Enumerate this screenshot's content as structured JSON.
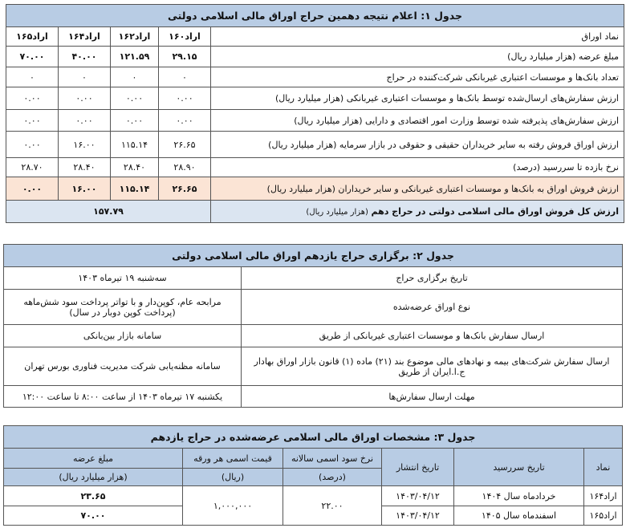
{
  "table1": {
    "title": "جدول ۱: اعلام نتیجه دهمین حراج اوراق مالی اسلامی دولتی",
    "header_label": "نماد اوراق",
    "symbols": [
      "اراد۱۶۰",
      "اراد۱۶۲",
      "اراد۱۶۴",
      "اراد۱۶۵"
    ],
    "rows": [
      {
        "label": "مبلغ عرضه (هزار میلیارد ریال)",
        "values": [
          "۲۹.۱۵",
          "۱۲۱.۵۹",
          "۴۰.۰۰",
          "۷۰.۰۰"
        ]
      },
      {
        "label": "تعداد بانک‌ها و موسسات اعتباری غیربانکی شرکت‌کننده در حراج",
        "values": [
          "۰",
          "۰",
          "۰",
          "۰"
        ]
      },
      {
        "label": "ارزش سفارش‌های ارسال‌شده توسط بانک‌ها و موسسات اعتباری غیربانکی (هزار میلیارد ریال)",
        "values": [
          "۰.۰۰",
          "۰.۰۰",
          "۰.۰۰",
          "۰.۰۰"
        ]
      },
      {
        "label": "ارزش سفارش‌های پذیرفته شده توسط وزارت امور اقتصادی و دارایی (هزار میلیارد ریال)",
        "values": [
          "۰.۰۰",
          "۰.۰۰",
          "۰.۰۰",
          "۰.۰۰"
        ]
      },
      {
        "label": "ارزش اوراق فروش رفته به سایر خریداران حقیقی و حقوقی در بازار سرمایه (هزار میلیارد ریال)",
        "values": [
          "۲۶.۶۵",
          "۱۱۵.۱۴",
          "۱۶.۰۰",
          "۰.۰۰"
        ]
      },
      {
        "label": "نرخ بازده تا سررسید (درصد)",
        "values": [
          "۲۸.۹۰",
          "۲۸.۴۰",
          "۲۸.۴۰",
          "۲۸.۷۰"
        ]
      }
    ],
    "highlight_row": {
      "label": "ارزش فروش اوراق به بانک‌ها و موسسات اعتباری غیربانکی و سایر خریداران (هزار میلیارد ریال)",
      "values": [
        "۲۶.۶۵",
        "۱۱۵.۱۴",
        "۱۶.۰۰",
        "۰.۰۰"
      ]
    },
    "total_row": {
      "label_bold": "ارزش کل فروش اوراق مالی اسلامی دولتی در حراج دهم",
      "label_unit": "(هزار میلیارد ریال)",
      "value": "۱۵۷.۷۹"
    }
  },
  "table2": {
    "title": "جدول ۲: برگزاری حراج یازدهم اوراق مالی اسلامی دولتی",
    "rows": [
      {
        "label": "تاریخ برگزاری حراج",
        "value": "سه‌شنبه ۱۹ تیرماه ۱۴۰۳"
      },
      {
        "label": "نوع اوراق عرضه‌شده",
        "value": "مرابحه عام، کوپن‌دار و با تواتر پرداخت سود شش‌ماهه (پرداخت کوپن دوبار در سال)"
      },
      {
        "label": "ارسال سفارش بانک‌ها و موسسات اعتباری غیربانکی از طریق",
        "value": "سامانه بازار بین‌بانکی"
      },
      {
        "label": "ارسال سفارش شرکت‌های بیمه و نهادهای مالی موضوع بند (۲۱) ماده (۱) قانون بازار اوراق بهادار ج.ا.ایران از طریق",
        "value": "سامانه مظنه‌یابی شرکت مدیریت فناوری بورس تهران"
      },
      {
        "label": "مهلت ارسال سفارش‌ها",
        "value": "یکشنبه ۱۷ تیرماه ۱۴۰۳ از ساعت ۸:۰۰ تا ساعت ۱۲:۰۰"
      }
    ]
  },
  "table3": {
    "title": "جدول ۳: مشخصات اوراق مالی اسلامی عرضه‌شده در حراج یازدهم",
    "headers": {
      "symbol": "نماد",
      "maturity": "تاریخ سررسید",
      "issue": "تاریخ انتشار",
      "rate": "نرخ سود اسمی سالانه",
      "rate_unit": "(درصد)",
      "price": "قیمت اسمی هر ورقه",
      "price_unit": "(ریال)",
      "amount": "مبلغ عرضه",
      "amount_unit": "(هزار میلیارد ریال)"
    },
    "rows": [
      {
        "symbol": "اراد۱۶۴",
        "maturity": "خردادماه سال ۱۴۰۴",
        "issue": "۱۴۰۳/۰۴/۱۲",
        "amount": "۲۳.۶۵"
      },
      {
        "symbol": "اراد۱۶۵",
        "maturity": "اسفندماه سال ۱۴۰۵",
        "issue": "۱۴۰۳/۰۴/۱۲",
        "amount": "۷۰.۰۰"
      }
    ],
    "shared_rate": "۲۲.۰۰",
    "shared_price": "۱,۰۰۰,۰۰۰"
  },
  "colors": {
    "header": "#b8cce4",
    "highlight": "#fbe4d5",
    "total": "#dbe5f1"
  }
}
